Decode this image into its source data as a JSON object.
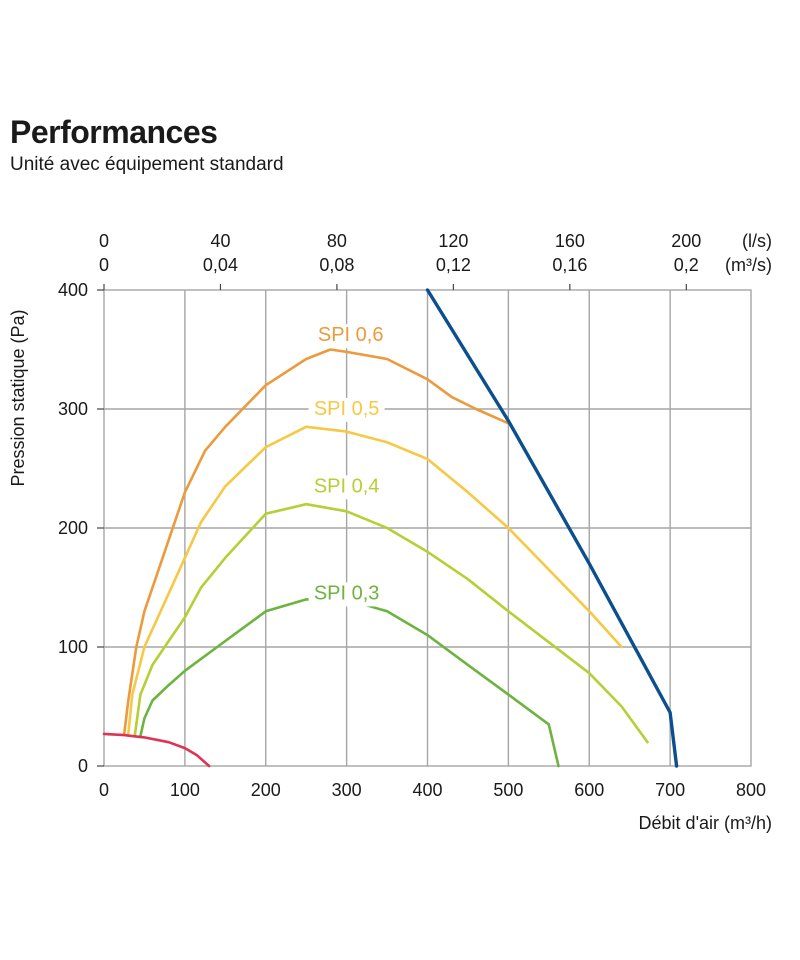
{
  "header": {
    "title": "Performances",
    "subtitle": "Unité avec équipement standard"
  },
  "chart_data": {
    "type": "line",
    "xlabel": "Débit d'air (m³/h)",
    "ylabel": "Pression statique  (Pa)",
    "xlim": [
      0,
      800
    ],
    "ylim": [
      0,
      400
    ],
    "x_ticks": [
      "0",
      "100",
      "200",
      "300",
      "400",
      "500",
      "600",
      "700",
      "800"
    ],
    "y_ticks": [
      "0",
      "100",
      "200",
      "300",
      "400"
    ],
    "top_axis": {
      "ls_ticks": [
        "0",
        "40",
        "80",
        "120",
        "160",
        "200"
      ],
      "ls_unit": "(l/s)",
      "m3s_ticks": [
        "0",
        "0,04",
        "0,08",
        "0,12",
        "0,16",
        "0,2"
      ],
      "m3s_unit": "(m³/s)"
    },
    "grid": true,
    "series": [
      {
        "key": "spi06",
        "name": "SPI 0,6",
        "color": "#ec9a3c",
        "label_at": [
          305,
          357
        ],
        "x": [
          25,
          30,
          40,
          50,
          65,
          80,
          100,
          125,
          150,
          200,
          250,
          280,
          300,
          350,
          400,
          430,
          460,
          500
        ],
        "y": [
          27,
          55,
          100,
          130,
          160,
          190,
          230,
          265,
          285,
          320,
          342,
          350,
          348,
          342,
          325,
          310,
          300,
          288
        ]
      },
      {
        "key": "spi05",
        "name": "SPI 0,5",
        "color": "#f7c843",
        "label_at": [
          300,
          295
        ],
        "x": [
          30,
          35,
          50,
          70,
          100,
          120,
          150,
          200,
          250,
          300,
          350,
          400,
          450,
          500,
          550,
          600,
          640
        ],
        "y": [
          27,
          60,
          100,
          130,
          175,
          205,
          235,
          268,
          285,
          281,
          272,
          258,
          230,
          200,
          165,
          130,
          100
        ]
      },
      {
        "key": "spi04",
        "name": "SPI 0,4",
        "color": "#b5cf35",
        "label_at": [
          300,
          230
        ],
        "x": [
          38,
          45,
          60,
          80,
          100,
          120,
          150,
          200,
          250,
          300,
          350,
          400,
          450,
          500,
          550,
          600,
          640,
          672
        ],
        "y": [
          25,
          60,
          85,
          105,
          125,
          150,
          175,
          212,
          220,
          214,
          200,
          180,
          157,
          130,
          104,
          78,
          50,
          20
        ]
      },
      {
        "key": "spi03",
        "name": "SPI 0,3",
        "color": "#6db33f",
        "label_at": [
          300,
          140
        ],
        "x": [
          45,
          50,
          60,
          80,
          100,
          150,
          200,
          250,
          300,
          350,
          400,
          450,
          500,
          550,
          562
        ],
        "y": [
          25,
          40,
          55,
          68,
          80,
          105,
          130,
          140,
          140,
          130,
          110,
          85,
          60,
          35,
          0
        ]
      },
      {
        "key": "system",
        "color": "#0b4f8f",
        "x": [
          400,
          500,
          600,
          700,
          708
        ],
        "y": [
          400,
          290,
          170,
          45,
          0
        ]
      },
      {
        "key": "low",
        "color": "#dd3355",
        "x": [
          0,
          25,
          50,
          80,
          100,
          115,
          130
        ],
        "y": [
          27,
          26,
          24,
          20,
          15,
          9,
          0
        ]
      }
    ]
  }
}
